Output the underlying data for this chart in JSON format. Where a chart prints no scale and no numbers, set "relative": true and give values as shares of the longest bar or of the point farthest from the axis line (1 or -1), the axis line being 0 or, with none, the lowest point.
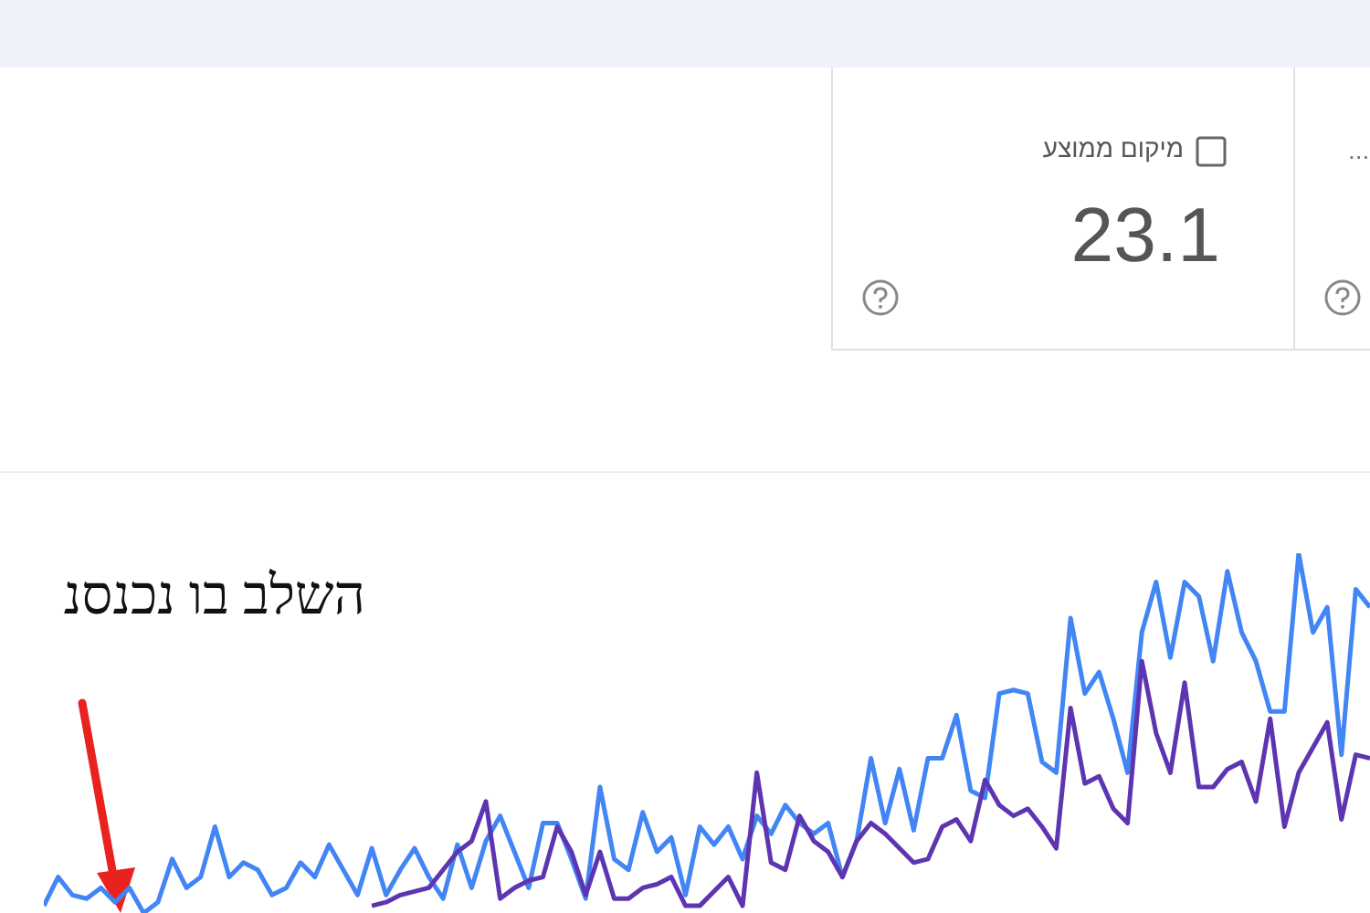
{
  "chart_data": {
    "type": "line",
    "relative": true,
    "tick_labels": false,
    "legend": false,
    "marker": "none",
    "line_style": "solid",
    "annotations": [
      "מיקום ממוצע",
      "23.1",
      "...",
      "השלב בו נכנסנ"
    ],
    "categories": [
      null,
      null,
      null,
      null,
      null,
      null,
      null,
      null,
      null,
      null,
      null,
      null,
      null,
      null,
      null,
      null,
      null,
      null,
      null,
      null,
      null,
      null,
      null,
      null,
      null,
      null,
      null,
      null,
      null,
      null,
      null,
      null,
      null,
      null,
      null,
      null,
      null,
      null,
      null,
      null,
      null,
      null,
      null,
      null,
      null,
      null,
      null,
      null,
      null,
      null,
      null,
      null,
      null,
      null,
      null,
      null,
      null,
      null,
      null,
      null,
      null,
      null,
      null,
      null,
      null,
      null,
      null,
      null,
      null,
      null,
      null,
      null,
      null,
      null,
      null,
      null,
      null,
      null,
      null,
      null,
      null,
      null,
      null,
      null,
      null,
      null,
      null,
      null,
      null,
      null,
      null,
      null,
      null,
      null
    ],
    "series": [
      {
        "color": "#4285f4",
        "values": [
          0.02,
          0.1,
          0.05,
          0.04,
          0.07,
          0.03,
          0.07,
          0,
          0.03,
          0.15,
          0.07,
          0.1,
          0.24,
          0.1,
          0.14,
          0.12,
          0.05,
          0.07,
          0.14,
          0.1,
          0.19,
          0.12,
          0.05,
          0.18,
          0.05,
          0.12,
          0.18,
          0.1,
          0.04,
          0.19,
          0.07,
          0.2,
          0.27,
          0.17,
          0.07,
          0.25,
          0.25,
          0.15,
          0.04,
          0.35,
          0.15,
          0.12,
          0.28,
          0.17,
          0.21,
          0.05,
          0.24,
          0.19,
          0.24,
          0.15,
          0.27,
          0.22,
          0.3,
          0.25,
          0.22,
          0.25,
          0.1,
          0.2,
          0.43,
          0.25,
          0.4,
          0.23,
          0.43,
          0.43,
          0.55,
          0.34,
          0.32,
          0.61,
          0.62,
          0.61,
          0.42,
          0.39,
          0.82,
          0.61,
          0.67,
          0.54,
          0.39,
          0.78,
          0.92,
          0.71,
          0.92,
          0.88,
          0.7,
          0.95,
          0.78,
          0.7,
          0.56,
          0.56,
          1,
          0.78,
          0.85,
          0.44,
          0.9,
          0.85
        ]
      },
      {
        "color": "#5e35b1",
        "values": [
          null,
          null,
          null,
          null,
          null,
          null,
          null,
          null,
          null,
          null,
          null,
          null,
          null,
          null,
          null,
          null,
          null,
          null,
          null,
          null,
          null,
          null,
          null,
          0.02,
          0.03,
          0.05,
          0.06,
          0.07,
          0.12,
          0.17,
          0.2,
          0.31,
          0.04,
          0.07,
          0.09,
          0.1,
          0.24,
          0.17,
          0.05,
          0.17,
          0.04,
          0.04,
          0.07,
          0.08,
          0.1,
          0.02,
          0.02,
          0.06,
          0.1,
          0.02,
          0.39,
          0.14,
          0.12,
          0.27,
          0.2,
          0.17,
          0.1,
          0.2,
          0.25,
          0.22,
          0.18,
          0.14,
          0.15,
          0.24,
          0.26,
          0.2,
          0.37,
          0.3,
          0.27,
          0.29,
          0.24,
          0.18,
          0.57,
          0.36,
          0.38,
          0.29,
          0.25,
          0.7,
          0.5,
          0.39,
          0.64,
          0.35,
          0.35,
          0.4,
          0.42,
          0.31,
          0.54,
          0.24,
          0.39,
          0.46,
          0.53,
          0.26,
          0.44,
          0.43
        ]
      }
    ]
  }
}
